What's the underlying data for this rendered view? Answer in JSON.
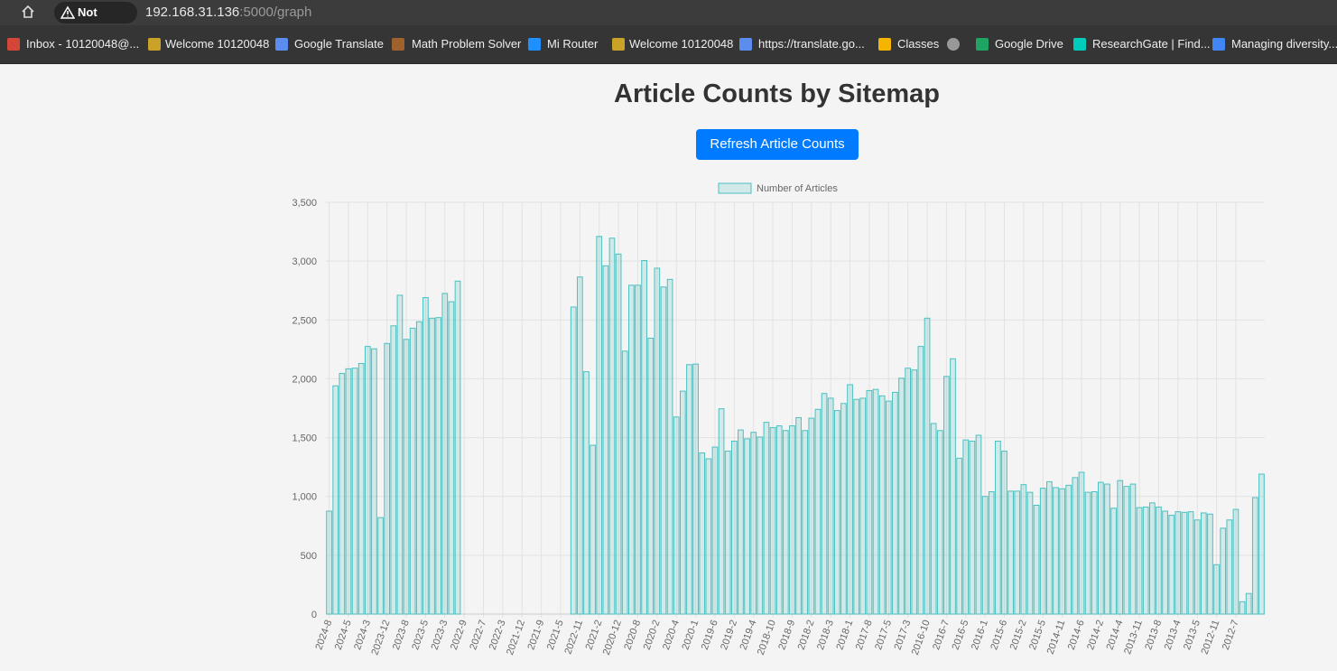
{
  "browser": {
    "security": "Not secure",
    "url_host": "192.168.31.136",
    "url_path": ":5000/graph",
    "bookmarks": [
      "Inbox - 10120048@...",
      "Welcome 10120048",
      "Google Translate",
      "Math Problem Solver",
      "Mi Router",
      "Welcome 10120048",
      "https://translate.go...",
      "Classes",
      "Google Drive",
      "ResearchGate | Find...",
      "Managing diversity..."
    ]
  },
  "page": {
    "button": "Refresh Article Counts"
  },
  "chart_data": {
    "type": "bar",
    "title": "Article Counts by Sitemap",
    "categories": [
      "2024-8",
      null,
      null,
      "2024-5",
      null,
      null,
      "2024-3",
      null,
      null,
      "2023-12",
      null,
      null,
      "2023-8",
      null,
      null,
      "2023-5",
      null,
      null,
      "2023-3",
      null,
      null,
      "2022-9",
      null,
      null,
      "2022-7",
      null,
      null,
      "2022-3",
      null,
      null,
      "2021-12",
      null,
      null,
      "2021-9",
      null,
      null,
      "2021-5",
      null,
      null,
      "2022-11",
      null,
      null,
      "2021-2",
      null,
      null,
      "2020-12",
      null,
      null,
      "2020-8",
      null,
      null,
      "2020-2",
      null,
      null,
      "2020-4",
      null,
      null,
      "2020-1",
      null,
      null,
      "2019-6",
      null,
      null,
      "2019-2",
      null,
      null,
      "2019-4",
      null,
      null,
      "2018-10",
      null,
      null,
      "2018-9",
      null,
      null,
      "2018-2",
      null,
      null,
      "2018-3",
      null,
      null,
      "2018-1",
      null,
      null,
      "2017-8",
      null,
      null,
      "2017-5",
      null,
      null,
      "2017-3",
      null,
      null,
      "2016-10",
      null,
      null,
      "2016-7",
      null,
      null,
      "2016-5",
      null,
      null,
      "2016-1",
      null,
      null,
      "2015-6",
      null,
      null,
      "2015-2",
      null,
      null,
      "2015-5",
      null,
      null,
      "2014-11",
      null,
      null,
      "2014-6",
      null,
      null,
      "2014-2",
      null,
      null,
      "2014-4",
      null,
      null,
      "2013-11",
      null,
      null,
      "2013-8",
      null,
      null,
      "2013-4",
      null,
      null,
      "2013-5",
      null,
      null,
      "2012-11",
      null,
      null,
      "2012-7",
      null,
      null,
      null,
      null
    ],
    "series": [
      {
        "name": "Number of Articles",
        "color": "rgba(75, 192, 192, 0.2)",
        "border_color": "#4bc0c0",
        "values": [
          875,
          1940,
          2045,
          2085,
          2090,
          2130,
          2275,
          2255,
          820,
          2300,
          2450,
          2710,
          2335,
          2430,
          2485,
          2690,
          2515,
          2520,
          2725,
          2655,
          2830,
          0,
          0,
          0,
          0,
          0,
          0,
          0,
          0,
          0,
          0,
          0,
          0,
          0,
          0,
          0,
          0,
          0,
          2610,
          2865,
          2060,
          1435,
          3210,
          2960,
          3195,
          3060,
          2235,
          2795,
          2795,
          3005,
          2345,
          2940,
          2780,
          2845,
          1675,
          1895,
          2120,
          2125,
          1370,
          1320,
          1420,
          1745,
          1385,
          1470,
          1565,
          1490,
          1545,
          1505,
          1630,
          1585,
          1600,
          1560,
          1600,
          1670,
          1560,
          1665,
          1740,
          1875,
          1835,
          1730,
          1790,
          1950,
          1825,
          1835,
          1900,
          1910,
          1855,
          1810,
          1885,
          2005,
          2090,
          2075,
          2275,
          2515,
          1620,
          1560,
          2020,
          2170,
          1325,
          1480,
          1470,
          1520,
          1000,
          1040,
          1470,
          1385,
          1045,
          1045,
          1100,
          1035,
          925,
          1070,
          1125,
          1075,
          1065,
          1095,
          1160,
          1205,
          1035,
          1040,
          1120,
          1105,
          900,
          1135,
          1085,
          1105,
          905,
          910,
          945,
          910,
          875,
          840,
          870,
          865,
          870,
          800,
          860,
          850,
          420,
          730,
          800,
          890,
          105,
          175,
          990,
          1190
        ]
      }
    ],
    "ylim": [
      0,
      3500
    ],
    "yticks": [
      0,
      500,
      {
        "value": 1000,
        "label": "1,000"
      },
      {
        "value": 1500,
        "label": "1,500"
      },
      {
        "value": 2000,
        "label": "2,000"
      },
      {
        "value": 2500,
        "label": "2,500"
      },
      {
        "value": 3000,
        "label": "3,000"
      },
      {
        "value": 3500,
        "label": "3,500"
      }
    ],
    "grid": true,
    "legend": "top"
  }
}
